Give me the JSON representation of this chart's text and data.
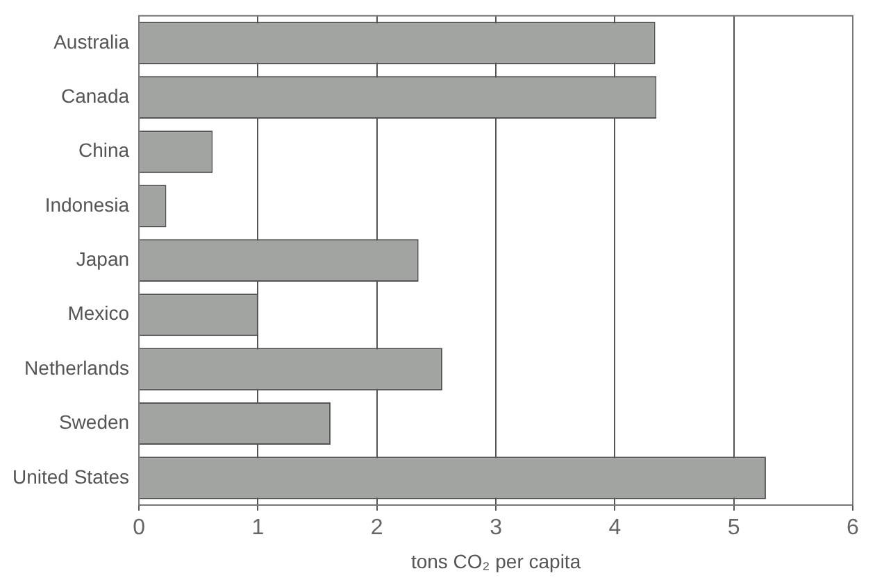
{
  "chart_data": {
    "type": "bar",
    "orientation": "horizontal",
    "categories": [
      "Australia",
      "Canada",
      "China",
      "Indonesia",
      "Japan",
      "Mexico",
      "Netherlands",
      "Sweden",
      "United States"
    ],
    "values": [
      4.34,
      4.35,
      0.62,
      0.23,
      2.35,
      1.0,
      2.55,
      1.61,
      5.27
    ],
    "color": "#a2a4a2",
    "xlabel": "tons CO₂ per capita",
    "xlim": [
      0,
      6
    ],
    "xticks": [
      0,
      1,
      2,
      3,
      4,
      5,
      6
    ],
    "grid": "x",
    "legend": false
  }
}
